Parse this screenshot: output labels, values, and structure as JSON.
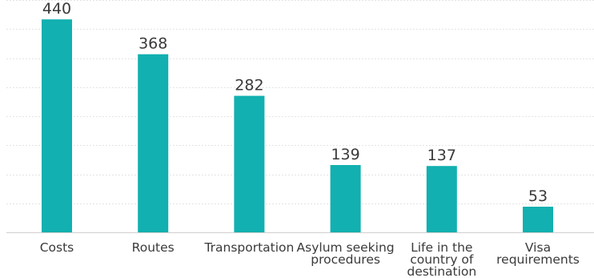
{
  "chart_data": {
    "type": "bar",
    "categories": [
      "Costs",
      "Routes",
      "Transportation",
      "Asylum seeking procedures",
      "Life in the country of destination",
      "Visa requirements"
    ],
    "category_lines": [
      [
        "Costs"
      ],
      [
        "Routes"
      ],
      [
        "Transportation"
      ],
      [
        "Asylum seeking",
        "procedures"
      ],
      [
        "Life in the",
        "country of",
        "destination"
      ],
      [
        "Visa",
        "requirements"
      ]
    ],
    "values": [
      440,
      368,
      282,
      139,
      137,
      53
    ],
    "ylim": [
      0,
      480
    ],
    "grid": true,
    "legend": "none",
    "bar_color": "#12b0b0",
    "title": "",
    "xlabel": "",
    "ylabel": ""
  }
}
